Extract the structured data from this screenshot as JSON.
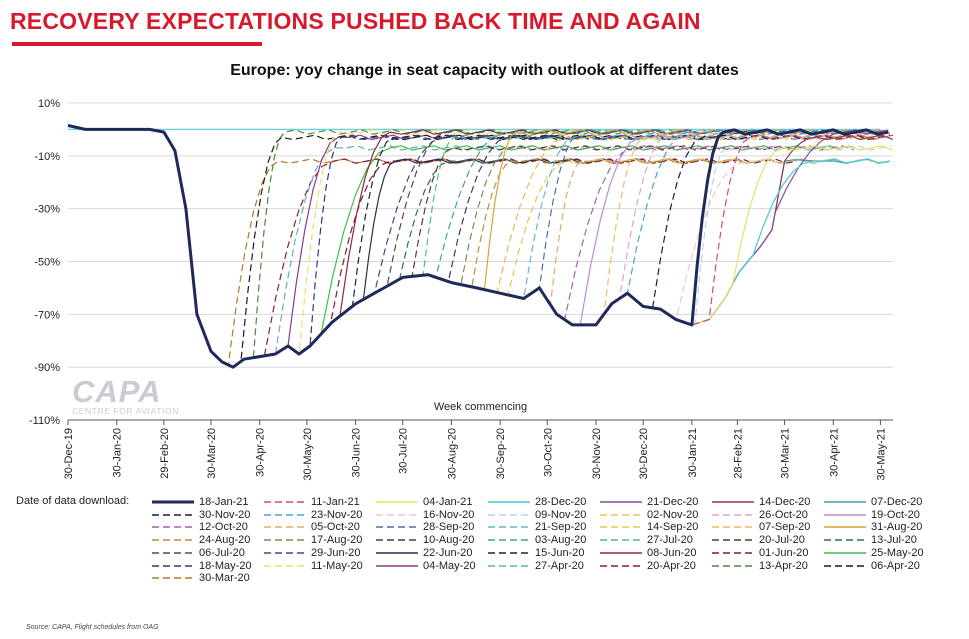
{
  "headline": "RECOVERY EXPECTATIONS PUSHED BACK TIME AND AGAIN",
  "watermark": {
    "brand": "CAPA",
    "tagline": "CENTRE FOR AVIATION"
  },
  "legend_label": "Date of data download:",
  "source": "Source: CAPA, Flight schedules from OAG",
  "chart_data": {
    "type": "line",
    "title": "Europe: yoy change in seat capacity with outlook at different dates",
    "xlabel": "Week commencing",
    "ylabel": "",
    "ylim": [
      -110,
      10
    ],
    "yticks": [
      10,
      -10,
      -30,
      -50,
      -70,
      -90,
      -110
    ],
    "ytick_labels": [
      "10%",
      "-10%",
      "-30%",
      "-50%",
      "-70%",
      "-90%",
      "-110%"
    ],
    "xlim": [
      "2019-12-30",
      "2021-06-07"
    ],
    "xticks": [
      "2019-12-30",
      "2020-01-30",
      "2020-02-29",
      "2020-03-30",
      "2020-04-30",
      "2020-05-30",
      "2020-06-30",
      "2020-07-30",
      "2020-08-30",
      "2020-09-30",
      "2020-10-30",
      "2020-11-30",
      "2020-12-30",
      "2021-01-30",
      "2021-02-28",
      "2021-03-30",
      "2021-04-30",
      "2021-05-30"
    ],
    "xtick_labels": [
      "30-Dec-19",
      "30-Jan-20",
      "29-Feb-20",
      "30-Mar-20",
      "30-Apr-20",
      "30-May-20",
      "30-Jun-20",
      "30-Jul-20",
      "30-Aug-20",
      "30-Sep-20",
      "30-Oct-20",
      "30-Nov-20",
      "30-Dec-20",
      "30-Jan-21",
      "28-Feb-21",
      "30-Mar-21",
      "30-Apr-21",
      "30-May-21"
    ],
    "legend_position": "bottom",
    "series": [
      {
        "name": "18-Jan-21",
        "color": "#1f2a5a",
        "dash": "solid",
        "width": 3,
        "recovery_date": "2021-01-30",
        "pre_path": "main"
      },
      {
        "name": "11-Jan-21",
        "color": "#d24c62",
        "dash": "dashed",
        "recovery_date": "2021-02-10",
        "pre_path": "main"
      },
      {
        "name": "04-Jan-21",
        "color": "#e6e36a",
        "dash": "solid",
        "recovery_date": "2021-02-25",
        "pre_path": "main"
      },
      {
        "name": "28-Dec-20",
        "color": "#47c9d9",
        "dash": "solid",
        "recovery_date": "2021-03-10",
        "pre_path": "main"
      },
      {
        "name": "21-Dec-20",
        "color": "#8d4a9e",
        "dash": "solid",
        "recovery_date": "2021-03-24",
        "pre_path": "main"
      },
      {
        "name": "14-Dec-20",
        "color": "#8e3b44",
        "dash": "solid",
        "recovery_date": "2021-03-30",
        "pre_path": "main"
      },
      {
        "name": "07-Dec-20",
        "color": "#3fa1a8",
        "dash": "solid",
        "recovery_date": "2021-04-05",
        "pre_path": "main"
      },
      {
        "name": "30-Nov-20",
        "color": "#1a1f3d",
        "dash": "dashed",
        "recovery_date": "2021-01-05",
        "pre_path": "main"
      },
      {
        "name": "23-Nov-20",
        "color": "#4aa3d6",
        "dash": "dashed",
        "recovery_date": "2020-12-20",
        "pre_path": "main"
      },
      {
        "name": "16-Nov-20",
        "color": "#e7c9d6",
        "dash": "dashed",
        "recovery_date": "2021-01-20",
        "pre_path": "main"
      },
      {
        "name": "09-Nov-20",
        "color": "#bcd3e6",
        "dash": "dashed",
        "recovery_date": "2021-02-01",
        "pre_path": "main"
      },
      {
        "name": "02-Nov-20",
        "color": "#e9c25a",
        "dash": "dashed",
        "recovery_date": "2020-12-05",
        "pre_path": "main"
      },
      {
        "name": "26-Oct-20",
        "color": "#d9a7c6",
        "dash": "dashed",
        "recovery_date": "2020-12-15",
        "pre_path": "main"
      },
      {
        "name": "19-Oct-20",
        "color": "#c28bd0",
        "dash": "solid",
        "recovery_date": "2020-11-20",
        "pre_path": "main"
      },
      {
        "name": "12-Oct-20",
        "color": "#a35fb0",
        "dash": "dashed",
        "recovery_date": "2020-11-10",
        "pre_path": "main"
      },
      {
        "name": "05-Oct-20",
        "color": "#e9a86a",
        "dash": "dashed",
        "recovery_date": "2020-11-01",
        "pre_path": "main"
      },
      {
        "name": "28-Sep-20",
        "color": "#4f6fa8",
        "dash": "dashed",
        "recovery_date": "2020-10-25",
        "pre_path": "main"
      },
      {
        "name": "21-Sep-20",
        "color": "#66b7c9",
        "dash": "dashed",
        "recovery_date": "2020-10-15",
        "pre_path": "main"
      },
      {
        "name": "14-Sep-20",
        "color": "#e8c84a",
        "dash": "dashed",
        "recovery_date": "2020-10-05",
        "pre_path": "main"
      },
      {
        "name": "07-Sep-20",
        "color": "#f0b35a",
        "dash": "dashed",
        "recovery_date": "2020-09-28",
        "pre_path": "main"
      },
      {
        "name": "31-Aug-20",
        "color": "#d7a23c",
        "dash": "solid",
        "recovery_date": "2020-09-20",
        "pre_path": "main"
      },
      {
        "name": "24-Aug-20",
        "color": "#c98a3a",
        "dash": "dashed",
        "recovery_date": "2020-09-12",
        "pre_path": "main"
      },
      {
        "name": "17-Aug-20",
        "color": "#7a8a5a",
        "dash": "dashed",
        "recovery_date": "2020-09-05",
        "pre_path": "main"
      },
      {
        "name": "10-Aug-20",
        "color": "#3a3f5a",
        "dash": "dashed",
        "recovery_date": "2020-08-28",
        "pre_path": "main"
      },
      {
        "name": "03-Aug-20",
        "color": "#35a7a3",
        "dash": "dashed",
        "recovery_date": "2020-08-20",
        "pre_path": "main"
      },
      {
        "name": "27-Jul-20",
        "color": "#4fbf7a",
        "dash": "dashed",
        "recovery_date": "2020-08-12",
        "pre_path": "main"
      },
      {
        "name": "20-Jul-20",
        "color": "#5b3a2a",
        "dash": "dashed",
        "recovery_date": "2020-08-05",
        "pre_path": "main"
      },
      {
        "name": "13-Jul-20",
        "color": "#2f6f5a",
        "dash": "dashed",
        "recovery_date": "2020-07-28",
        "pre_path": "main"
      },
      {
        "name": "06-Jul-20",
        "color": "#5a4a3a",
        "dash": "dashed",
        "recovery_date": "2020-07-20",
        "pre_path": "main"
      },
      {
        "name": "29-Jun-20",
        "color": "#3b4a8a",
        "dash": "dashed",
        "recovery_date": "2020-07-12",
        "pre_path": "main"
      },
      {
        "name": "22-Jun-20",
        "color": "#2a2f4a",
        "dash": "solid",
        "recovery_date": "2020-07-05",
        "pre_path": "main"
      },
      {
        "name": "15-Jun-20",
        "color": "#1e2236",
        "dash": "dashed",
        "recovery_date": "2020-06-28",
        "pre_path": "main"
      },
      {
        "name": "08-Jun-20",
        "color": "#8a2a3a",
        "dash": "solid",
        "recovery_date": "2020-06-20",
        "pre_path": "main"
      },
      {
        "name": "01-Jun-20",
        "color": "#7a1f2a",
        "dash": "dashed",
        "recovery_date": "2020-06-14",
        "pre_path": "main"
      },
      {
        "name": "25-May-20",
        "color": "#3fbf4a",
        "dash": "solid",
        "recovery_date": "2020-06-08",
        "pre_path": "main"
      },
      {
        "name": "18-May-20",
        "color": "#2a3a7a",
        "dash": "dashed",
        "recovery_date": "2020-06-01",
        "pre_path": "main"
      },
      {
        "name": "11-May-20",
        "color": "#f0de6a",
        "dash": "dashed",
        "recovery_date": "2020-05-25",
        "pre_path": "main"
      },
      {
        "name": "04-May-20",
        "color": "#8a3a8a",
        "dash": "solid",
        "recovery_date": "2020-05-18",
        "pre_path": "main"
      },
      {
        "name": "27-Apr-20",
        "color": "#5fb0c0",
        "dash": "dashed",
        "recovery_date": "2020-05-10",
        "pre_path": "main"
      },
      {
        "name": "20-Apr-20",
        "color": "#8a1f2a",
        "dash": "dashed",
        "recovery_date": "2020-05-03",
        "pre_path": "main"
      },
      {
        "name": "13-Apr-20",
        "color": "#4a8a3a",
        "dash": "dashed",
        "recovery_date": "2020-04-26",
        "pre_path": "main"
      },
      {
        "name": "06-Apr-20",
        "color": "#1a1a1a",
        "dash": "dashed",
        "recovery_date": "2020-04-18",
        "pre_path": "main"
      },
      {
        "name": "30-Mar-20",
        "color": "#b07a2a",
        "dash": "dashed",
        "recovery_date": "2020-04-10",
        "pre_path": "main"
      }
    ],
    "main_path": [
      [
        "2019-12-30",
        1.5
      ],
      [
        "2020-01-10",
        0
      ],
      [
        "2020-02-01",
        0
      ],
      [
        "2020-02-20",
        0
      ],
      [
        "2020-02-29",
        -1
      ],
      [
        "2020-03-07",
        -8
      ],
      [
        "2020-03-14",
        -30
      ],
      [
        "2020-03-21",
        -70
      ],
      [
        "2020-03-30",
        -84
      ],
      [
        "2020-04-06",
        -88
      ],
      [
        "2020-04-13",
        -90
      ],
      [
        "2020-04-20",
        -87
      ],
      [
        "2020-04-30",
        -86
      ],
      [
        "2020-05-10",
        -85
      ],
      [
        "2020-05-18",
        -82
      ],
      [
        "2020-05-25",
        -85
      ],
      [
        "2020-06-01",
        -82
      ],
      [
        "2020-06-15",
        -73
      ],
      [
        "2020-06-30",
        -66
      ],
      [
        "2020-07-15",
        -61
      ],
      [
        "2020-07-30",
        -56
      ],
      [
        "2020-08-15",
        -55
      ],
      [
        "2020-08-30",
        -58
      ],
      [
        "2020-09-15",
        -60
      ],
      [
        "2020-09-30",
        -62
      ],
      [
        "2020-10-15",
        -64
      ],
      [
        "2020-10-25",
        -60
      ],
      [
        "2020-11-05",
        -70
      ],
      [
        "2020-11-15",
        -74
      ],
      [
        "2020-11-30",
        -74
      ],
      [
        "2020-12-10",
        -66
      ],
      [
        "2020-12-20",
        -62
      ],
      [
        "2020-12-30",
        -67
      ],
      [
        "2021-01-10",
        -68
      ],
      [
        "2021-01-20",
        -72
      ],
      [
        "2021-01-30",
        -74
      ],
      [
        "2021-02-10",
        -72
      ],
      [
        "2021-02-20",
        -64
      ],
      [
        "2021-03-01",
        -54
      ],
      [
        "2021-03-15",
        -44
      ],
      [
        "2021-03-22",
        -38
      ],
      [
        "2021-03-30",
        -12
      ],
      [
        "2021-04-10",
        -11
      ],
      [
        "2021-04-30",
        -13
      ],
      [
        "2021-05-15",
        -12
      ],
      [
        "2021-05-30",
        -13
      ],
      [
        "2021-06-07",
        -14
      ]
    ],
    "baseline_2019": 0
  }
}
